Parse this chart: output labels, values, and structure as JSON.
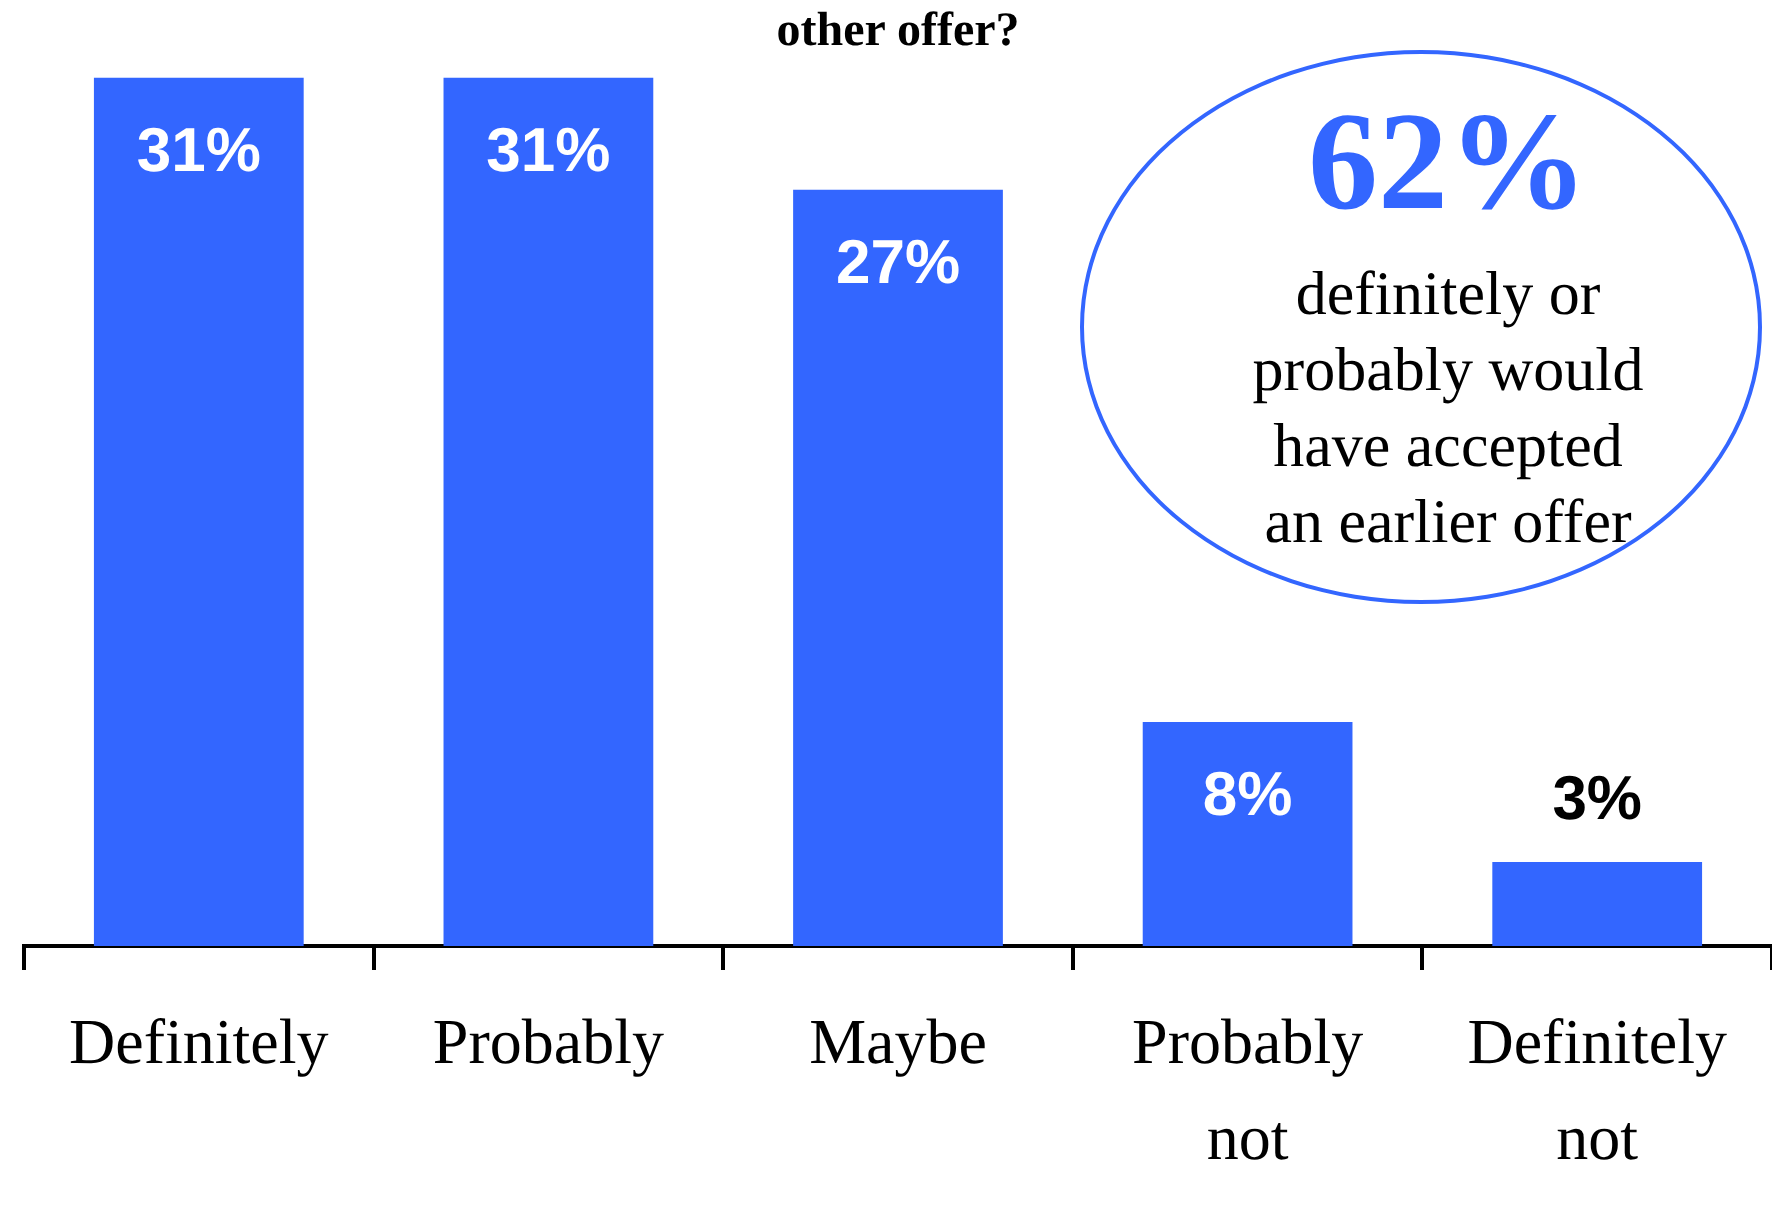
{
  "chart_data": {
    "type": "bar",
    "title": "other offer?",
    "categories": [
      "Definitely",
      "Probably",
      "Maybe",
      "Probably not",
      "Definitely not"
    ],
    "values": [
      31,
      31,
      27,
      8,
      3
    ],
    "color": "#3366ff",
    "value_labels": [
      "31%",
      "31%",
      "27%",
      "8%",
      "3%"
    ],
    "annotations": [
      "62%",
      "definitely or probably would have accepted an earlier offer"
    ],
    "legend": false
  }
}
